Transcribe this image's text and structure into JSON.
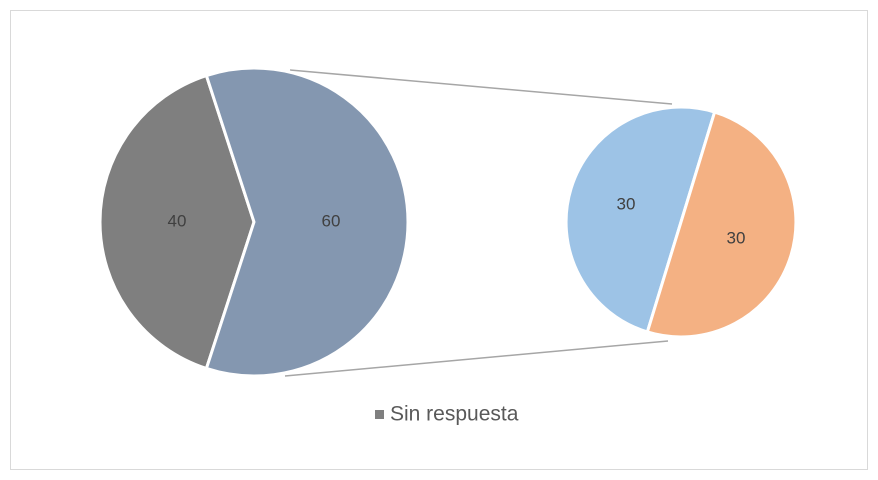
{
  "chart_data": {
    "type": "pie",
    "values": [
      40,
      60
    ],
    "colors": [
      "#7f7f7f",
      "#8497b0"
    ],
    "secondary_values": [
      30,
      30
    ],
    "secondary_colors": [
      "#9dc3e6",
      "#f4b183"
    ],
    "legend": [
      "Sin respuesta"
    ],
    "legend_colors": [
      "#7f7f7f"
    ]
  }
}
